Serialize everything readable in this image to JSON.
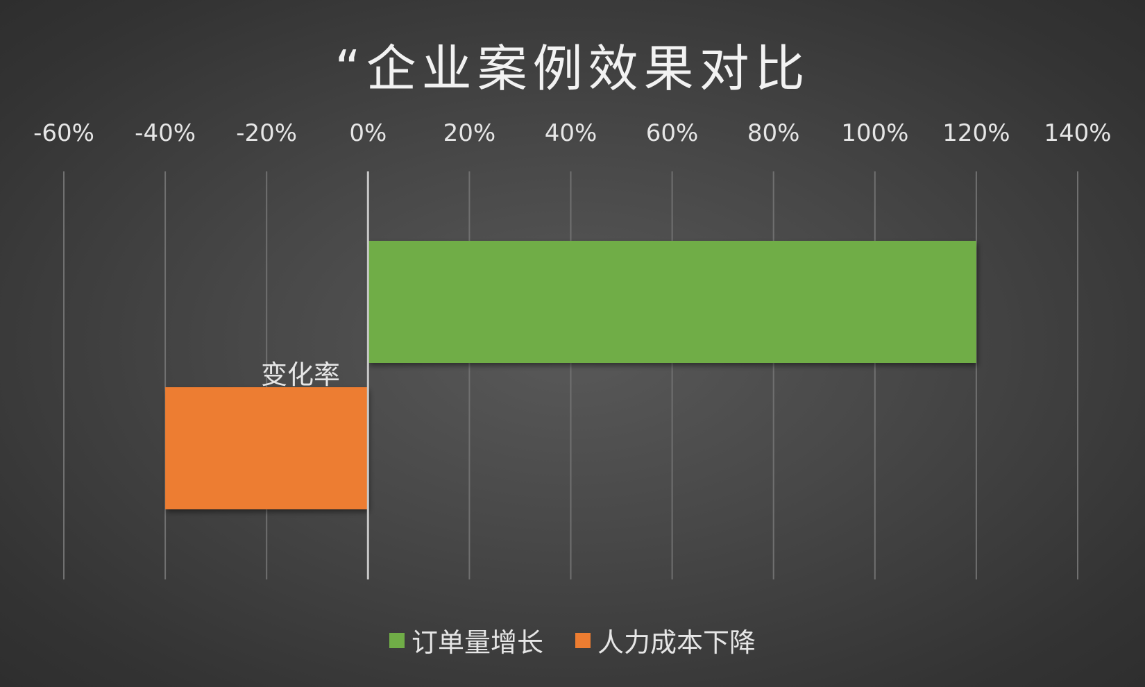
{
  "chart_data": {
    "type": "bar",
    "orientation": "horizontal",
    "title": "“企业案例效果对比",
    "category_label": "变化率",
    "series": [
      {
        "name": "订单量增长",
        "value": 1.2,
        "color": "#70ad47"
      },
      {
        "name": "人力成本下降",
        "value": -0.4,
        "color": "#ed7d31"
      }
    ],
    "xlim": [
      -0.6,
      1.4
    ],
    "xticks": [
      -0.6,
      -0.4,
      -0.2,
      0,
      0.2,
      0.4,
      0.6,
      0.8,
      1.0,
      1.2,
      1.4
    ],
    "xtick_labels": [
      "-60%",
      "-40%",
      "-20%",
      "0%",
      "20%",
      "40%",
      "60%",
      "80%",
      "100%",
      "120%",
      "140%"
    ],
    "grid": true,
    "legend_position": "bottom"
  }
}
